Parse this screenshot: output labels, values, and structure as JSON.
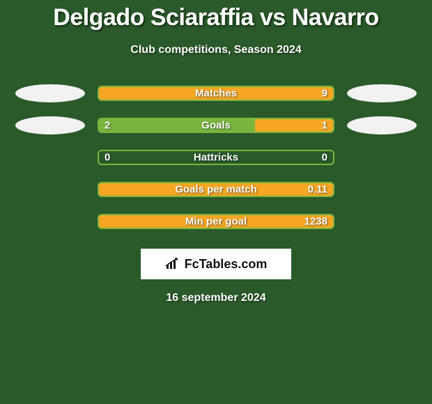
{
  "background_color": "#2a5a2a",
  "title": "Delgado Sciaraffia vs Navarro",
  "title_fontsize": 34,
  "title_color": "#ffffff",
  "subtitle": "Club competitions, Season 2024",
  "subtitle_fontsize": 16,
  "subtitle_color": "#ffffff",
  "accent_green": "#7ab53f",
  "accent_orange": "#f5a623",
  "ellipse_fill": "#f2f2f2",
  "label_color": "#ffffff",
  "value_color": "#ffffff",
  "rows": [
    {
      "label": "Matches",
      "left_value": "",
      "right_value": "9",
      "left_pct": 0,
      "right_pct": 100,
      "show_ellipses": true
    },
    {
      "label": "Goals",
      "left_value": "2",
      "right_value": "1",
      "left_pct": 66.7,
      "right_pct": 33.3,
      "show_ellipses": true
    },
    {
      "label": "Hattricks",
      "left_value": "0",
      "right_value": "0",
      "left_pct": 0,
      "right_pct": 0,
      "show_ellipses": false
    },
    {
      "label": "Goals per match",
      "left_value": "",
      "right_value": "0.11",
      "left_pct": 0,
      "right_pct": 100,
      "show_ellipses": false
    },
    {
      "label": "Min per goal",
      "left_value": "",
      "right_value": "1238",
      "left_pct": 0,
      "right_pct": 100,
      "show_ellipses": false
    }
  ],
  "logo_text": "FcTables.com",
  "footer_date": "16 september 2024"
}
